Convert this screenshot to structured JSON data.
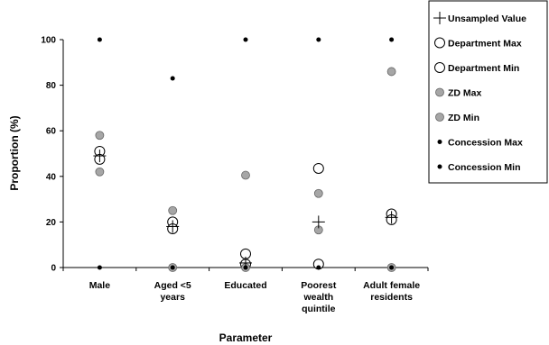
{
  "chart_data": {
    "type": "scatter",
    "xlabel": "Parameter",
    "ylabel": "Proportion (%)",
    "ylim": [
      0,
      100
    ],
    "yticks": [
      0,
      20,
      40,
      60,
      80,
      100
    ],
    "grid": false,
    "legend_position": "right",
    "categories": [
      [
        "Male"
      ],
      [
        "Aged <5",
        "years"
      ],
      [
        "Educated"
      ],
      [
        "Poorest",
        "wealth",
        "quintile"
      ],
      [
        "Adult female",
        "residents"
      ]
    ],
    "series": [
      {
        "name": "Unsampled Value",
        "marker": "plus",
        "color": "#000000",
        "values": [
          49,
          18,
          2,
          20,
          22
        ]
      },
      {
        "name": "Department Max",
        "marker": "circle-open",
        "color": "#ffffff",
        "values": [
          51,
          20,
          6,
          43.5,
          23.5
        ]
      },
      {
        "name": "Department Min",
        "marker": "circle-open",
        "color": "#ffffff",
        "values": [
          47.5,
          17,
          1.5,
          1.5,
          21
        ]
      },
      {
        "name": "ZD Max",
        "marker": "circle-gray",
        "color": "#a6a6a6",
        "values": [
          58,
          25,
          40.5,
          32.5,
          86
        ]
      },
      {
        "name": "ZD Min",
        "marker": "circle-gray",
        "color": "#a6a6a6",
        "values": [
          42,
          0,
          0,
          16.5,
          0
        ]
      },
      {
        "name": "Concession Max",
        "marker": "dot",
        "color": "#000000",
        "values": [
          100,
          83,
          100,
          100,
          100
        ]
      },
      {
        "name": "Concession Min",
        "marker": "dot",
        "color": "#000000",
        "values": [
          0,
          0,
          0,
          0,
          0
        ]
      }
    ]
  }
}
